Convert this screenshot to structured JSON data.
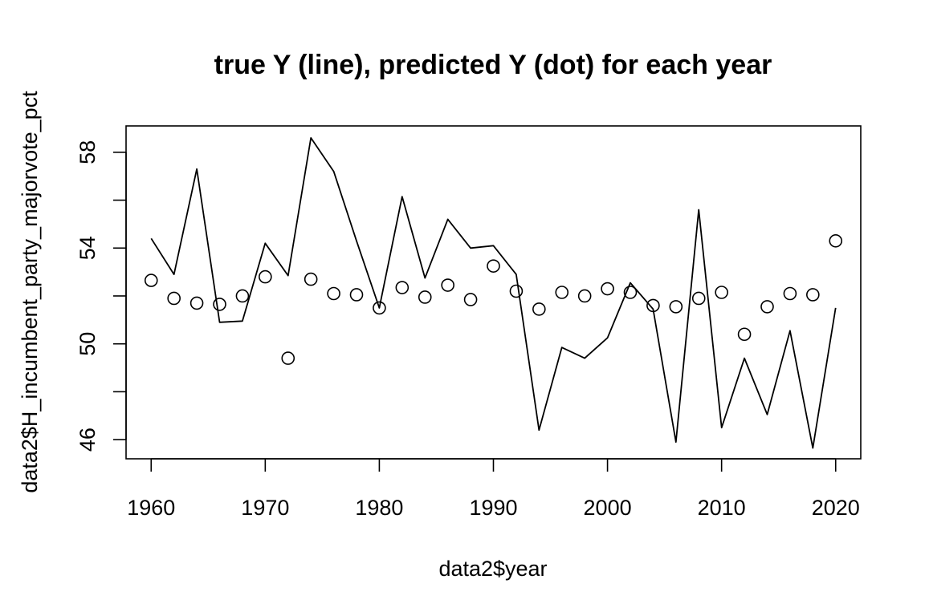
{
  "chart_data": {
    "type": "line",
    "title": "true Y (line), predicted Y (dot) for each year",
    "xlabel": "data2$year",
    "ylabel": "data2$H_incumbent_party_majorvote_pct",
    "xlim": [
      1957.8,
      2022.2
    ],
    "ylim": [
      45.2,
      59.1
    ],
    "x_ticks": [
      1960,
      1970,
      1980,
      1990,
      2000,
      2010,
      2020
    ],
    "y_ticks": [
      46,
      48,
      50,
      52,
      54,
      56,
      58
    ],
    "y_tick_labels": [
      "46",
      "",
      "50",
      "",
      "54",
      "",
      "58"
    ],
    "grid": false,
    "x": [
      1960,
      1962,
      1964,
      1966,
      1968,
      1970,
      1972,
      1974,
      1976,
      1978,
      1980,
      1982,
      1984,
      1986,
      1988,
      1990,
      1992,
      1994,
      1996,
      1998,
      2000,
      2002,
      2004,
      2006,
      2008,
      2010,
      2012,
      2014,
      2016,
      2018,
      2020
    ],
    "series": [
      {
        "style": "line",
        "values": [
          54.4,
          52.9,
          57.3,
          50.9,
          50.95,
          54.2,
          52.85,
          58.6,
          57.2,
          54.3,
          51.5,
          56.15,
          52.75,
          55.2,
          54.0,
          54.1,
          52.9,
          46.4,
          49.85,
          49.4,
          50.25,
          52.55,
          51.45,
          45.9,
          55.6,
          46.5,
          49.4,
          47.05,
          50.55,
          45.65,
          51.5
        ]
      },
      {
        "style": "points",
        "values": [
          52.65,
          51.9,
          51.7,
          51.65,
          52.0,
          52.8,
          49.4,
          52.7,
          52.1,
          52.05,
          51.5,
          52.35,
          51.95,
          52.45,
          51.85,
          53.25,
          52.2,
          51.45,
          52.15,
          52.0,
          52.3,
          52.15,
          51.6,
          51.55,
          51.9,
          52.15,
          50.4,
          51.55,
          52.1,
          52.05,
          54.3
        ]
      }
    ]
  }
}
